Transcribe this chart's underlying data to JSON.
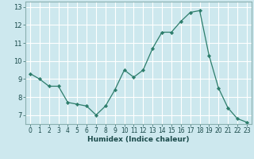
{
  "x": [
    0,
    1,
    2,
    3,
    4,
    5,
    6,
    7,
    8,
    9,
    10,
    11,
    12,
    13,
    14,
    15,
    16,
    17,
    18,
    19,
    20,
    21,
    22,
    23
  ],
  "y": [
    9.3,
    9.0,
    8.6,
    8.6,
    7.7,
    7.6,
    7.5,
    7.0,
    7.5,
    8.4,
    9.5,
    9.1,
    9.5,
    10.7,
    11.6,
    11.6,
    12.2,
    12.7,
    12.8,
    10.3,
    8.5,
    7.4,
    6.8,
    6.6
  ],
  "xlabel": "Humidex (Indice chaleur)",
  "line_color": "#2d7d6b",
  "marker": "D",
  "marker_size": 2.2,
  "bg_color": "#cde8ee",
  "grid_color": "#ffffff",
  "ylim": [
    6.5,
    13.3
  ],
  "yticks": [
    7,
    8,
    9,
    10,
    11,
    12,
    13
  ],
  "xlim": [
    -0.5,
    23.5
  ],
  "xticks": [
    0,
    1,
    2,
    3,
    4,
    5,
    6,
    7,
    8,
    9,
    10,
    11,
    12,
    13,
    14,
    15,
    16,
    17,
    18,
    19,
    20,
    21,
    22,
    23
  ],
  "tick_fontsize": 5.5,
  "xlabel_fontsize": 6.5,
  "spine_color": "#8ab0b0",
  "tick_color": "#4a7a7a",
  "text_color": "#1a4a4a"
}
